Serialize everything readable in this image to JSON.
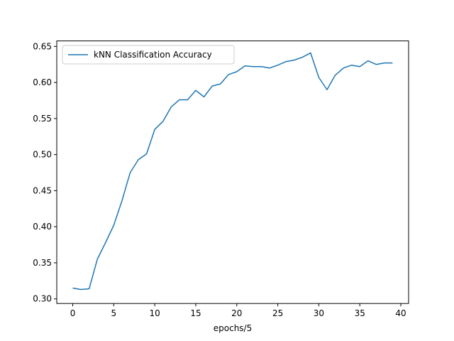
{
  "chart_data": {
    "type": "line",
    "title": "",
    "xlabel": "epochs/5",
    "ylabel": "",
    "xlim": [
      -1.95,
      40.95
    ],
    "ylim": [
      0.2936,
      0.6576
    ],
    "xticks": [
      0,
      5,
      10,
      15,
      20,
      25,
      30,
      35,
      40
    ],
    "yticks": [
      0.3,
      0.35,
      0.4,
      0.45,
      0.5,
      0.55,
      0.6,
      0.65
    ],
    "xtick_labels": [
      "0",
      "5",
      "10",
      "15",
      "20",
      "25",
      "30",
      "35",
      "40"
    ],
    "ytick_labels": [
      "0.30",
      "0.35",
      "0.40",
      "0.45",
      "0.50",
      "0.55",
      "0.60",
      "0.65"
    ],
    "legend_position": "upper-left",
    "grid": false,
    "series": [
      {
        "name": "kNN Classification Accuracy",
        "color": "#1f77b4",
        "x": [
          0,
          1,
          2,
          3,
          4,
          5,
          6,
          7,
          8,
          9,
          10,
          11,
          12,
          13,
          14,
          15,
          16,
          17,
          18,
          19,
          20,
          21,
          22,
          23,
          24,
          25,
          26,
          27,
          28,
          29,
          30,
          31,
          32,
          33,
          34,
          35,
          36,
          37,
          38,
          39
        ],
        "y": [
          0.315,
          0.313,
          0.314,
          0.355,
          0.378,
          0.402,
          0.436,
          0.475,
          0.493,
          0.501,
          0.535,
          0.546,
          0.566,
          0.576,
          0.576,
          0.589,
          0.58,
          0.595,
          0.598,
          0.611,
          0.615,
          0.623,
          0.622,
          0.622,
          0.62,
          0.624,
          0.629,
          0.631,
          0.635,
          0.641,
          0.607,
          0.59,
          0.61,
          0.62,
          0.624,
          0.622,
          0.63,
          0.625,
          0.627,
          0.627
        ]
      }
    ]
  }
}
